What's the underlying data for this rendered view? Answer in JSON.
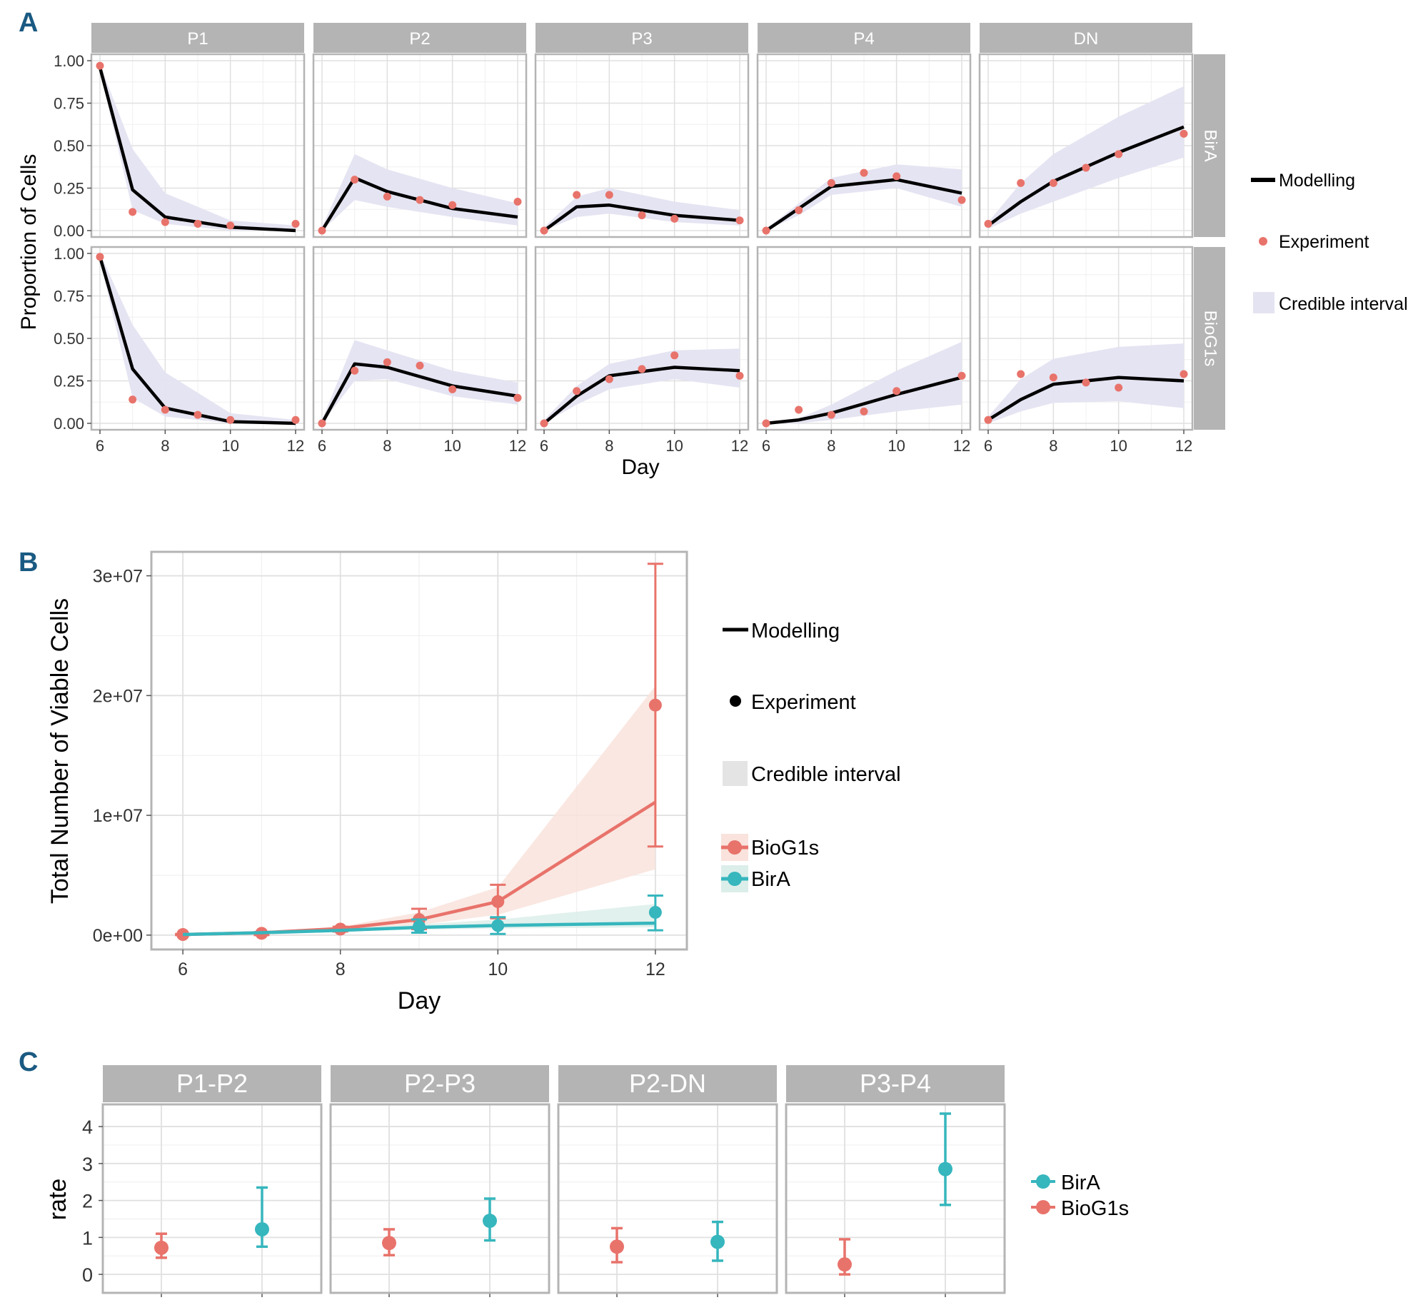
{
  "panel_letters": [
    "A",
    "B",
    "C"
  ],
  "colors": {
    "model_line": "#000000",
    "experiment_point": "#e8736b",
    "credible_band_a": "#e4e3f1",
    "biog1s": "#e8736b",
    "biog1s_band": "#f9e3dc",
    "bira": "#36b6bd",
    "bira_band": "#dceeea",
    "strip_bg": "#b4b4b4",
    "grid_major": "#e0e0e0",
    "grid_minor": "#f0f0f0",
    "frame": "#b4b4b4"
  },
  "legend_a": {
    "modelling": "Modelling",
    "experiment": "Experiment",
    "credible": "Credible interval"
  },
  "legend_b": {
    "modelling": "Modelling",
    "experiment": "Experiment",
    "credible": "Credible interval",
    "biog1s": "BioG1s",
    "bira": "BirA"
  },
  "legend_c": {
    "bira": "BirA",
    "biog1s": "BioG1s"
  },
  "chart_data": [
    {
      "id": "A",
      "type": "line",
      "xlabel": "Day",
      "ylabel": "Proportion of Cells",
      "x_ticks": [
        "6",
        "8",
        "10",
        "12"
      ],
      "y_ticks": [
        "0.00",
        "0.25",
        "0.50",
        "0.75",
        "1.00"
      ],
      "ylim": [
        0,
        1
      ],
      "xlim": [
        6,
        12
      ],
      "columns": [
        "P1",
        "P2",
        "P3",
        "P4",
        "DN"
      ],
      "rows": [
        "BirA",
        "BioG1s"
      ],
      "model_days": [
        6,
        7,
        8,
        10,
        12
      ],
      "exp_days": [
        6,
        7,
        8,
        9,
        10,
        12
      ],
      "facets": {
        "BirA": {
          "P1": {
            "model": [
              0.96,
              0.24,
              0.08,
              0.02,
              0.0
            ],
            "exp": [
              0.97,
              0.11,
              0.05,
              0.04,
              0.03,
              0.04
            ],
            "lower": [
              0.94,
              0.12,
              0.04,
              0.0,
              0.0
            ],
            "upper": [
              0.98,
              0.48,
              0.22,
              0.06,
              0.03
            ]
          },
          "P2": {
            "model": [
              0.0,
              0.31,
              0.23,
              0.13,
              0.08
            ],
            "exp": [
              0.0,
              0.3,
              0.2,
              0.18,
              0.15,
              0.17
            ],
            "lower": [
              0.0,
              0.18,
              0.14,
              0.08,
              0.03
            ],
            "upper": [
              0.02,
              0.45,
              0.36,
              0.25,
              0.16
            ]
          },
          "P3": {
            "model": [
              0.0,
              0.14,
              0.15,
              0.09,
              0.06
            ],
            "exp": [
              0.0,
              0.21,
              0.21,
              0.09,
              0.07,
              0.06
            ],
            "lower": [
              0.0,
              0.08,
              0.1,
              0.05,
              0.03
            ],
            "upper": [
              0.02,
              0.2,
              0.25,
              0.17,
              0.12
            ]
          },
          "P4": {
            "model": [
              0.0,
              0.13,
              0.26,
              0.3,
              0.22
            ],
            "exp": [
              0.0,
              0.12,
              0.28,
              0.34,
              0.32,
              0.18
            ],
            "lower": [
              0.0,
              0.09,
              0.21,
              0.25,
              0.14
            ],
            "upper": [
              0.01,
              0.16,
              0.31,
              0.39,
              0.36
            ]
          },
          "DN": {
            "model": [
              0.03,
              0.17,
              0.29,
              0.46,
              0.61
            ],
            "exp": [
              0.04,
              0.28,
              0.28,
              0.37,
              0.45,
              0.57
            ],
            "lower": [
              0.01,
              0.1,
              0.17,
              0.31,
              0.43
            ],
            "upper": [
              0.05,
              0.28,
              0.45,
              0.67,
              0.85
            ]
          }
        },
        "BioG1s": {
          "P1": {
            "model": [
              0.98,
              0.32,
              0.09,
              0.01,
              0.0
            ],
            "exp": [
              0.98,
              0.14,
              0.08,
              0.05,
              0.02,
              0.02
            ],
            "lower": [
              0.96,
              0.15,
              0.04,
              0.0,
              0.0
            ],
            "upper": [
              1.0,
              0.58,
              0.3,
              0.06,
              0.02
            ]
          },
          "P2": {
            "model": [
              0.0,
              0.35,
              0.33,
              0.22,
              0.16
            ],
            "exp": [
              0.0,
              0.31,
              0.36,
              0.34,
              0.2,
              0.15
            ],
            "lower": [
              0.0,
              0.25,
              0.26,
              0.16,
              0.11
            ],
            "upper": [
              0.02,
              0.49,
              0.43,
              0.31,
              0.24
            ]
          },
          "P3": {
            "model": [
              0.0,
              0.16,
              0.28,
              0.33,
              0.31
            ],
            "exp": [
              0.0,
              0.19,
              0.26,
              0.32,
              0.4,
              0.28
            ],
            "lower": [
              0.0,
              0.11,
              0.2,
              0.26,
              0.21
            ],
            "upper": [
              0.02,
              0.22,
              0.35,
              0.43,
              0.44
            ]
          },
          "P4": {
            "model": [
              0.0,
              0.02,
              0.06,
              0.17,
              0.27
            ],
            "exp": [
              0.0,
              0.08,
              0.05,
              0.07,
              0.19,
              0.28
            ],
            "lower": [
              0.0,
              0.0,
              0.02,
              0.07,
              0.11
            ],
            "upper": [
              0.01,
              0.03,
              0.11,
              0.31,
              0.48
            ]
          },
          "DN": {
            "model": [
              0.02,
              0.14,
              0.23,
              0.27,
              0.25
            ],
            "exp": [
              0.02,
              0.29,
              0.27,
              0.24,
              0.21,
              0.29
            ],
            "lower": [
              0.0,
              0.07,
              0.12,
              0.13,
              0.09
            ],
            "upper": [
              0.04,
              0.26,
              0.38,
              0.45,
              0.47
            ]
          }
        }
      }
    },
    {
      "id": "B",
      "type": "line",
      "xlabel": "Day",
      "ylabel": "Total Number of Viable Cells",
      "x_ticks": [
        "6",
        "8",
        "10",
        "12"
      ],
      "y_ticks": [
        "0e+00",
        "1e+07",
        "2e+07",
        "3e+07"
      ],
      "xlim": [
        5.6,
        12.4
      ],
      "ylim": [
        -1200000,
        32000000
      ],
      "series": [
        {
          "name": "BioG1s",
          "model_x": [
            6,
            7,
            8,
            9,
            10,
            12
          ],
          "model_y": [
            50000,
            200000,
            550000,
            1300000,
            2800000,
            11100000
          ],
          "band_lower": [
            40000,
            150000,
            400000,
            850000,
            1700000,
            5500000
          ],
          "band_upper": [
            70000,
            260000,
            700000,
            1900000,
            4000000,
            20800000
          ],
          "exp_x": [
            6,
            7,
            8,
            9,
            10,
            12
          ],
          "exp_y": [
            50000,
            150000,
            500000,
            1300000,
            2800000,
            19200000
          ],
          "err_lo": [
            0,
            0,
            300000,
            500000,
            1400000,
            7400000
          ],
          "err_hi": [
            100000,
            250000,
            700000,
            2200000,
            4200000,
            31000000
          ]
        },
        {
          "name": "BirA",
          "model_x": [
            6,
            7,
            8,
            9,
            10,
            12
          ],
          "model_y": [
            50000,
            200000,
            400000,
            650000,
            800000,
            1000000
          ],
          "band_lower": [
            40000,
            150000,
            300000,
            450000,
            550000,
            650000
          ],
          "band_upper": [
            60000,
            250000,
            500000,
            900000,
            1300000,
            2600000
          ],
          "exp_x": [
            9,
            10,
            12
          ],
          "exp_y": [
            700000,
            800000,
            1900000
          ],
          "err_lo": [
            200000,
            100000,
            400000
          ],
          "err_hi": [
            1300000,
            1500000,
            3300000
          ]
        }
      ]
    },
    {
      "id": "C",
      "type": "scatter",
      "ylabel": "rate",
      "y_ticks": [
        "0",
        "1",
        "2",
        "3",
        "4"
      ],
      "ylim": [
        -0.5,
        4.6
      ],
      "categories": [
        "P1-P2",
        "P2-P3",
        "P2-DN",
        "P3-P4"
      ],
      "series": [
        {
          "name": "BioG1s",
          "values": [
            0.72,
            0.85,
            0.75,
            0.27
          ],
          "lower": [
            0.45,
            0.52,
            0.33,
            0.0
          ],
          "upper": [
            1.1,
            1.22,
            1.25,
            0.95
          ]
        },
        {
          "name": "BirA",
          "values": [
            1.22,
            1.45,
            0.88,
            2.85
          ],
          "lower": [
            0.75,
            0.92,
            0.37,
            1.88
          ],
          "upper": [
            2.35,
            2.05,
            1.42,
            4.35
          ]
        }
      ]
    }
  ]
}
